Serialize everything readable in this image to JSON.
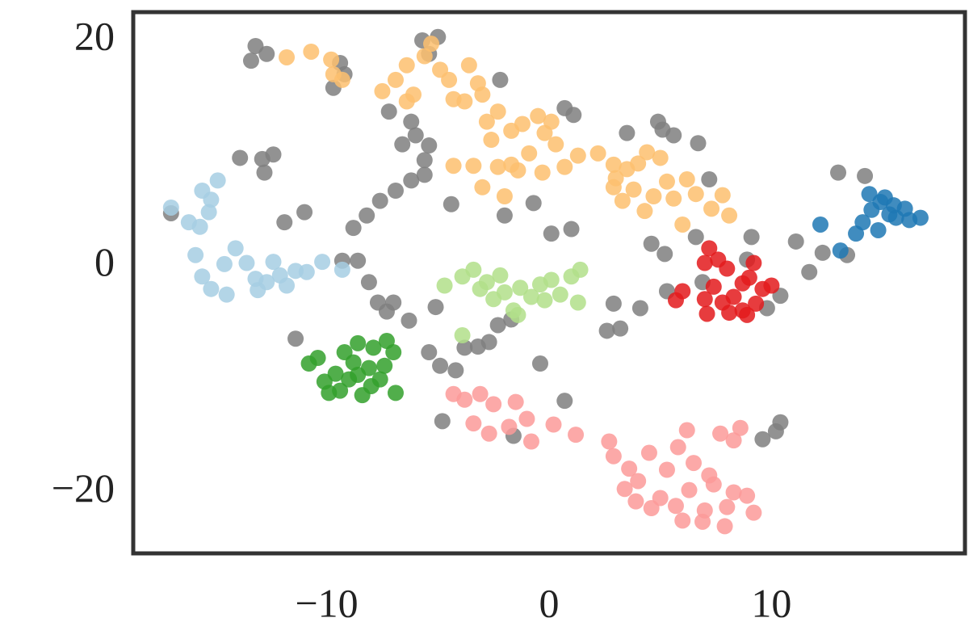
{
  "chart_data": {
    "type": "scatter",
    "xlim": [
      -18.7,
      18.7
    ],
    "ylim": [
      -25.4,
      22.5
    ],
    "xticks": [
      {
        "value": -10,
        "label": "−10"
      },
      0,
      10
    ],
    "yticks": [
      {
        "value": -20,
        "label": "−20"
      },
      0,
      20
    ],
    "grid": false,
    "series": [
      {
        "color": "#7f7f7f",
        "points": [
          [
            -13.2,
            19.5
          ],
          [
            -13.4,
            18.2
          ],
          [
            -12.7,
            18.8
          ],
          [
            -9.4,
            18.0
          ],
          [
            -9.2,
            17.0
          ],
          [
            -9.7,
            15.8
          ],
          [
            -5.7,
            20.0
          ],
          [
            -5.0,
            20.3
          ],
          [
            -5.4,
            18.8
          ],
          [
            -2.2,
            16.5
          ],
          [
            0.7,
            14.0
          ],
          [
            1.1,
            13.4
          ],
          [
            3.5,
            11.8
          ],
          [
            4.9,
            12.8
          ],
          [
            5.1,
            12.1
          ],
          [
            5.6,
            11.6
          ],
          [
            6.7,
            10.9
          ],
          [
            7.2,
            7.7
          ],
          [
            6.6,
            2.6
          ],
          [
            4.6,
            2.0
          ],
          [
            5.2,
            1.1
          ],
          [
            9.1,
            2.6
          ],
          [
            8.9,
            0.6
          ],
          [
            11.1,
            2.2
          ],
          [
            11.7,
            -0.5
          ],
          [
            12.3,
            1.2
          ],
          [
            13.4,
            1.0
          ],
          [
            13.0,
            8.3
          ],
          [
            14.2,
            8.0
          ],
          [
            10.4,
            -2.6
          ],
          [
            9.8,
            -3.7
          ],
          [
            6.9,
            -1.4
          ],
          [
            5.3,
            -2.2
          ],
          [
            4.1,
            -3.7
          ],
          [
            2.9,
            -3.3
          ],
          [
            2.6,
            -5.7
          ],
          [
            3.2,
            -5.5
          ],
          [
            -13.9,
            9.6
          ],
          [
            -12.9,
            9.5
          ],
          [
            -12.4,
            9.9
          ],
          [
            -12.8,
            8.3
          ],
          [
            -17.0,
            4.7
          ],
          [
            -11.9,
            3.9
          ],
          [
            -11.0,
            4.8
          ],
          [
            -8.8,
            3.4
          ],
          [
            -8.2,
            4.5
          ],
          [
            -7.6,
            5.8
          ],
          [
            -6.9,
            6.7
          ],
          [
            -6.2,
            7.6
          ],
          [
            -5.6,
            8.1
          ],
          [
            -5.6,
            9.4
          ],
          [
            -5.4,
            10.7
          ],
          [
            -6.0,
            11.6
          ],
          [
            -6.6,
            10.8
          ],
          [
            -6.2,
            12.8
          ],
          [
            -7.2,
            13.7
          ],
          [
            -8.6,
            0.5
          ],
          [
            -8.1,
            -1.4
          ],
          [
            -7.7,
            -3.2
          ],
          [
            -7.0,
            -3.2
          ],
          [
            -7.3,
            -4.0
          ],
          [
            -6.3,
            -4.8
          ],
          [
            -5.1,
            -3.6
          ],
          [
            -5.4,
            -7.6
          ],
          [
            -4.9,
            -8.8
          ],
          [
            -4.2,
            -9.2
          ],
          [
            -3.8,
            -7.2
          ],
          [
            -3.2,
            -7.1
          ],
          [
            -2.7,
            -6.7
          ],
          [
            -2.3,
            -5.2
          ],
          [
            -1.7,
            -4.7
          ],
          [
            -0.4,
            -8.6
          ],
          [
            -1.6,
            -15.0
          ],
          [
            -4.8,
            -13.7
          ],
          [
            0.7,
            -11.9
          ],
          [
            -4.4,
            5.5
          ],
          [
            -2.0,
            4.5
          ],
          [
            -0.7,
            5.6
          ],
          [
            0.1,
            2.9
          ],
          [
            1.0,
            3.3
          ],
          [
            10.2,
            -14.6
          ],
          [
            9.6,
            -15.3
          ],
          [
            10.4,
            -13.8
          ],
          [
            -11.4,
            -6.4
          ],
          [
            -9.3,
            0.5
          ]
        ]
      },
      {
        "color": "#fdbf6f",
        "points": [
          [
            -11.8,
            18.5
          ],
          [
            -10.7,
            19.0
          ],
          [
            -9.7,
            17.0
          ],
          [
            -9.8,
            18.3
          ],
          [
            -7.5,
            15.5
          ],
          [
            -6.9,
            16.5
          ],
          [
            -6.4,
            17.8
          ],
          [
            -6.1,
            15.2
          ],
          [
            -6.4,
            14.6
          ],
          [
            -5.6,
            18.6
          ],
          [
            -5.3,
            19.7
          ],
          [
            -4.9,
            17.4
          ],
          [
            -4.5,
            16.5
          ],
          [
            -4.3,
            14.8
          ],
          [
            -3.8,
            14.6
          ],
          [
            -3.6,
            17.8
          ],
          [
            -3.2,
            16.2
          ],
          [
            -3.0,
            15.2
          ],
          [
            -2.8,
            12.8
          ],
          [
            -2.3,
            13.7
          ],
          [
            -2.6,
            11.2
          ],
          [
            -1.7,
            12.0
          ],
          [
            -1.2,
            12.6
          ],
          [
            -0.5,
            13.3
          ],
          [
            -0.2,
            11.8
          ],
          [
            0.3,
            10.8
          ],
          [
            0.1,
            12.8
          ],
          [
            -0.9,
            10.0
          ],
          [
            -1.7,
            9.0
          ],
          [
            -2.3,
            8.8
          ],
          [
            -3.4,
            8.9
          ],
          [
            -4.3,
            8.9
          ],
          [
            -3.0,
            7.0
          ],
          [
            -2.0,
            6.2
          ],
          [
            -1.4,
            8.5
          ],
          [
            -0.3,
            8.3
          ],
          [
            0.7,
            8.8
          ],
          [
            1.3,
            9.8
          ],
          [
            2.2,
            10.0
          ],
          [
            2.9,
            9.0
          ],
          [
            3.5,
            8.6
          ],
          [
            4.0,
            9.1
          ],
          [
            3.0,
            7.8
          ],
          [
            3.8,
            6.8
          ],
          [
            3.3,
            5.8
          ],
          [
            4.3,
            4.9
          ],
          [
            4.7,
            6.2
          ],
          [
            5.3,
            7.5
          ],
          [
            5.6,
            6.0
          ],
          [
            6.2,
            7.7
          ],
          [
            6.6,
            6.4
          ],
          [
            7.3,
            5.1
          ],
          [
            7.8,
            6.3
          ],
          [
            8.1,
            4.5
          ],
          [
            6.0,
            3.7
          ],
          [
            5.0,
            9.6
          ],
          [
            4.4,
            10.1
          ],
          [
            2.9,
            7.0
          ],
          [
            -9.3,
            16.5
          ]
        ]
      },
      {
        "color": "#a6cee3",
        "points": [
          [
            -17.0,
            5.2
          ],
          [
            -16.2,
            3.9
          ],
          [
            -15.6,
            6.7
          ],
          [
            -15.2,
            5.9
          ],
          [
            -14.9,
            7.6
          ],
          [
            -15.3,
            4.8
          ],
          [
            -15.9,
            1.0
          ],
          [
            -15.6,
            -0.9
          ],
          [
            -15.2,
            -2.0
          ],
          [
            -14.6,
            0.2
          ],
          [
            -14.1,
            1.6
          ],
          [
            -13.6,
            0.3
          ],
          [
            -13.2,
            -1.1
          ],
          [
            -12.7,
            -1.4
          ],
          [
            -12.4,
            0.4
          ],
          [
            -12.1,
            -0.8
          ],
          [
            -11.8,
            -1.7
          ],
          [
            -11.4,
            -0.4
          ],
          [
            -10.9,
            -0.5
          ],
          [
            -10.2,
            0.4
          ],
          [
            -9.3,
            -0.3
          ],
          [
            -15.7,
            3.5
          ],
          [
            -14.5,
            -2.5
          ],
          [
            -13.1,
            -2.1
          ]
        ]
      },
      {
        "color": "#1f78b4",
        "points": [
          [
            12.2,
            3.7
          ],
          [
            13.1,
            1.4
          ],
          [
            13.8,
            2.9
          ],
          [
            14.4,
            6.4
          ],
          [
            14.5,
            5.0
          ],
          [
            14.9,
            5.7
          ],
          [
            15.3,
            4.6
          ],
          [
            15.6,
            4.3
          ],
          [
            16.0,
            5.1
          ],
          [
            16.7,
            4.3
          ],
          [
            14.1,
            3.9
          ],
          [
            14.8,
            3.2
          ],
          [
            15.1,
            6.1
          ],
          [
            15.5,
            5.4
          ],
          [
            16.2,
            4.1
          ]
        ]
      },
      {
        "color": "#b2df8a",
        "points": [
          [
            -4.7,
            -1.7
          ],
          [
            -3.9,
            -0.9
          ],
          [
            -3.4,
            -0.3
          ],
          [
            -2.8,
            -1.4
          ],
          [
            -2.5,
            -2.9
          ],
          [
            -2.0,
            -2.3
          ],
          [
            -1.6,
            -3.9
          ],
          [
            -1.3,
            -1.9
          ],
          [
            -0.8,
            -2.7
          ],
          [
            -0.4,
            -1.6
          ],
          [
            0.1,
            -1.2
          ],
          [
            0.5,
            -2.5
          ],
          [
            1.0,
            -0.9
          ],
          [
            1.4,
            -0.3
          ],
          [
            1.3,
            -3.2
          ],
          [
            -3.9,
            -6.1
          ],
          [
            -1.4,
            -4.3
          ],
          [
            -0.2,
            -3.0
          ],
          [
            -3.1,
            -2.0
          ],
          [
            -2.2,
            -0.8
          ]
        ]
      },
      {
        "color": "#33a02c",
        "points": [
          [
            -10.8,
            -8.6
          ],
          [
            -10.4,
            -8.1
          ],
          [
            -10.1,
            -10.2
          ],
          [
            -9.6,
            -9.5
          ],
          [
            -9.4,
            -11.0
          ],
          [
            -9.0,
            -10.0
          ],
          [
            -8.8,
            -8.5
          ],
          [
            -8.6,
            -9.6
          ],
          [
            -8.4,
            -11.4
          ],
          [
            -8.1,
            -9.0
          ],
          [
            -7.9,
            -7.2
          ],
          [
            -7.6,
            -10.0
          ],
          [
            -7.4,
            -8.8
          ],
          [
            -7.0,
            -7.6
          ],
          [
            -6.9,
            -11.2
          ],
          [
            -8.6,
            -6.8
          ],
          [
            -9.2,
            -7.6
          ],
          [
            -7.3,
            -6.6
          ],
          [
            -9.9,
            -11.2
          ],
          [
            -8.0,
            -10.6
          ]
        ]
      },
      {
        "color": "#fb9a99",
        "points": [
          [
            -4.3,
            -11.3
          ],
          [
            -3.8,
            -11.8
          ],
          [
            -3.1,
            -11.3
          ],
          [
            -2.5,
            -12.2
          ],
          [
            -1.5,
            -12.0
          ],
          [
            -1.0,
            -13.5
          ],
          [
            -3.4,
            -13.9
          ],
          [
            -2.7,
            -14.8
          ],
          [
            -1.8,
            -14.2
          ],
          [
            -0.8,
            -15.5
          ],
          [
            0.2,
            -14.0
          ],
          [
            1.2,
            -14.9
          ],
          [
            2.7,
            -15.5
          ],
          [
            2.9,
            -16.8
          ],
          [
            3.6,
            -17.9
          ],
          [
            4.0,
            -19.0
          ],
          [
            3.4,
            -19.7
          ],
          [
            4.5,
            -16.5
          ],
          [
            5.3,
            -18.0
          ],
          [
            5.0,
            -20.5
          ],
          [
            4.6,
            -21.4
          ],
          [
            5.7,
            -21.2
          ],
          [
            6.3,
            -19.8
          ],
          [
            6.0,
            -22.5
          ],
          [
            7.0,
            -21.6
          ],
          [
            7.4,
            -19.3
          ],
          [
            8.0,
            -21.3
          ],
          [
            8.3,
            -20.0
          ],
          [
            8.9,
            -20.3
          ],
          [
            9.2,
            -21.8
          ],
          [
            7.9,
            -23.0
          ],
          [
            6.5,
            -17.4
          ],
          [
            7.2,
            -18.5
          ],
          [
            8.3,
            -15.4
          ],
          [
            8.6,
            -14.3
          ],
          [
            7.7,
            -14.8
          ],
          [
            6.2,
            -14.5
          ],
          [
            5.8,
            -16.0
          ],
          [
            3.9,
            -20.8
          ],
          [
            6.9,
            -22.6
          ]
        ]
      },
      {
        "color": "#e31a1c",
        "points": [
          [
            5.7,
            -3.0
          ],
          [
            6.0,
            -2.2
          ],
          [
            7.2,
            1.6
          ],
          [
            7.0,
            0.3
          ],
          [
            7.6,
            0.6
          ],
          [
            8.0,
            -0.2
          ],
          [
            7.4,
            -1.8
          ],
          [
            7.8,
            -3.2
          ],
          [
            8.3,
            -2.7
          ],
          [
            8.7,
            -1.5
          ],
          [
            9.2,
            0.3
          ],
          [
            9.0,
            -1.0
          ],
          [
            9.6,
            -2.0
          ],
          [
            10.0,
            -1.7
          ],
          [
            7.1,
            -4.2
          ],
          [
            8.1,
            -4.1
          ],
          [
            8.7,
            -3.9
          ],
          [
            9.3,
            -3.3
          ],
          [
            7.0,
            -2.9
          ],
          [
            8.9,
            -4.3
          ]
        ]
      }
    ]
  }
}
